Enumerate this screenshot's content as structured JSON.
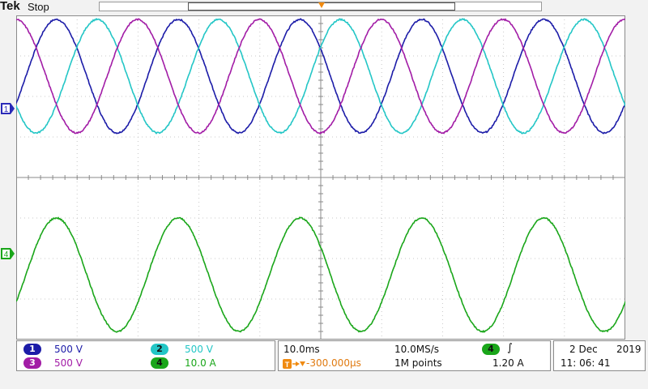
{
  "header": {
    "brand": "Tek",
    "acq_state": "Stop"
  },
  "trigger": {
    "marker_label": "T",
    "position": "-300.000µs",
    "channel": "4",
    "slope_symbol": "∫",
    "level": "1.20 A"
  },
  "channels": [
    {
      "id": "1",
      "scale": "500 V",
      "color": "#1c1ca8"
    },
    {
      "id": "2",
      "scale": "500 V",
      "color": "#23c6c6"
    },
    {
      "id": "3",
      "scale": "500 V",
      "color": "#a21ca6"
    },
    {
      "id": "4",
      "scale": "10.0 A",
      "color": "#1aa61a"
    }
  ],
  "channel_markers": {
    "ch1": "1",
    "ch4": "4"
  },
  "timebase": {
    "scale": "10.0ms",
    "sample_rate": "10.0MS/s",
    "record_length": "1M points"
  },
  "datetime": {
    "date": "2 Dec",
    "year": "2019",
    "time": "11: 06: 41"
  },
  "chart_data": {
    "type": "line",
    "xlabel": "",
    "ylabel": "",
    "grid": true,
    "series": [
      {
        "name": "1",
        "color": "#1c1ca8",
        "waveform": "sine",
        "period_ms": 20,
        "amplitude_div": 1.4,
        "offset_div": 2.5,
        "phase_deg": 0
      },
      {
        "name": "2",
        "color": "#23c6c6",
        "waveform": "sine",
        "period_ms": 20,
        "amplitude_div": 1.4,
        "offset_div": 2.5,
        "phase_deg": 120
      },
      {
        "name": "3",
        "color": "#a21ca6",
        "waveform": "sine",
        "period_ms": 20,
        "amplitude_div": 1.4,
        "offset_div": 2.5,
        "phase_deg": 240
      },
      {
        "name": "4",
        "color": "#1aa61a",
        "waveform": "sine",
        "period_ms": 20,
        "amplitude_div": 1.4,
        "offset_div": -2.4,
        "phase_deg": 0
      }
    ]
  }
}
